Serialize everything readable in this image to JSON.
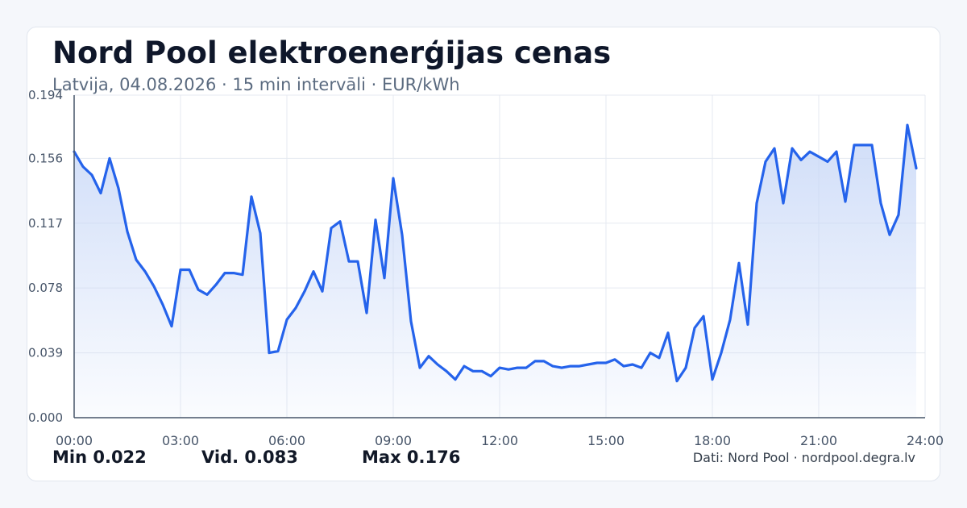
{
  "title": "Nord Pool elektroenerģijas cenas",
  "subtitle": "Latvija, 04.08.2026 · 15 min intervāli · EUR/kWh",
  "stats": {
    "min": "Min 0.022",
    "avg": "Vid. 0.083",
    "max": "Max 0.176"
  },
  "source": "Dati: Nord Pool · nordpool.degra.lv",
  "colors": {
    "line": "#2563eb",
    "area_top": "#c7d7f7",
    "grid": "#e5e9f0",
    "axis": "#475569"
  },
  "chart_data": {
    "type": "area",
    "title": "Nord Pool elektroenerģijas cenas",
    "xlabel": "",
    "ylabel": "",
    "xlim": [
      0,
      24
    ],
    "ylim": [
      0,
      0.194
    ],
    "x_ticks": [
      "00:00",
      "03:00",
      "06:00",
      "09:00",
      "12:00",
      "15:00",
      "18:00",
      "21:00",
      "24:00"
    ],
    "y_ticks": [
      "0.000",
      "0.039",
      "0.078",
      "0.117",
      "0.156",
      "0.194"
    ],
    "grid": true,
    "series": [
      {
        "points": [
          [
            0.0,
            0.16
          ],
          [
            0.25,
            0.151
          ],
          [
            0.5,
            0.146
          ],
          [
            0.75,
            0.135
          ],
          [
            1.0,
            0.156
          ],
          [
            1.25,
            0.138
          ],
          [
            1.5,
            0.112
          ],
          [
            1.75,
            0.095
          ],
          [
            2.0,
            0.088
          ],
          [
            2.25,
            0.079
          ],
          [
            2.5,
            0.068
          ],
          [
            2.75,
            0.055
          ],
          [
            3.0,
            0.089
          ],
          [
            3.25,
            0.089
          ],
          [
            3.5,
            0.077
          ],
          [
            3.75,
            0.074
          ],
          [
            4.0,
            0.08
          ],
          [
            4.25,
            0.087
          ],
          [
            4.5,
            0.087
          ],
          [
            4.75,
            0.086
          ],
          [
            5.0,
            0.133
          ],
          [
            5.25,
            0.111
          ],
          [
            5.5,
            0.039
          ],
          [
            5.75,
            0.04
          ],
          [
            6.0,
            0.059
          ],
          [
            6.25,
            0.066
          ],
          [
            6.5,
            0.076
          ],
          [
            6.75,
            0.088
          ],
          [
            7.0,
            0.076
          ],
          [
            7.25,
            0.114
          ],
          [
            7.5,
            0.118
          ],
          [
            7.75,
            0.094
          ],
          [
            8.0,
            0.094
          ],
          [
            8.25,
            0.063
          ],
          [
            8.5,
            0.119
          ],
          [
            8.75,
            0.084
          ],
          [
            9.0,
            0.144
          ],
          [
            9.25,
            0.11
          ],
          [
            9.5,
            0.058
          ],
          [
            9.75,
            0.03
          ],
          [
            10.0,
            0.037
          ],
          [
            10.25,
            0.032
          ],
          [
            10.5,
            0.028
          ],
          [
            10.75,
            0.023
          ],
          [
            11.0,
            0.031
          ],
          [
            11.25,
            0.028
          ],
          [
            11.5,
            0.028
          ],
          [
            11.75,
            0.025
          ],
          [
            12.0,
            0.03
          ],
          [
            12.25,
            0.029
          ],
          [
            12.5,
            0.03
          ],
          [
            12.75,
            0.03
          ],
          [
            13.0,
            0.034
          ],
          [
            13.25,
            0.034
          ],
          [
            13.5,
            0.031
          ],
          [
            13.75,
            0.03
          ],
          [
            14.0,
            0.031
          ],
          [
            14.25,
            0.031
          ],
          [
            14.5,
            0.032
          ],
          [
            14.75,
            0.033
          ],
          [
            15.0,
            0.033
          ],
          [
            15.25,
            0.035
          ],
          [
            15.5,
            0.031
          ],
          [
            15.75,
            0.032
          ],
          [
            16.0,
            0.03
          ],
          [
            16.25,
            0.039
          ],
          [
            16.5,
            0.036
          ],
          [
            16.75,
            0.051
          ],
          [
            17.0,
            0.022
          ],
          [
            17.25,
            0.03
          ],
          [
            17.5,
            0.054
          ],
          [
            17.75,
            0.061
          ],
          [
            18.0,
            0.023
          ],
          [
            18.25,
            0.039
          ],
          [
            18.5,
            0.059
          ],
          [
            18.75,
            0.093
          ],
          [
            19.0,
            0.056
          ],
          [
            19.25,
            0.129
          ],
          [
            19.5,
            0.154
          ],
          [
            19.75,
            0.162
          ],
          [
            20.0,
            0.129
          ],
          [
            20.25,
            0.162
          ],
          [
            20.5,
            0.155
          ],
          [
            20.75,
            0.16
          ],
          [
            21.0,
            0.157
          ],
          [
            21.25,
            0.154
          ],
          [
            21.5,
            0.16
          ],
          [
            21.75,
            0.13
          ],
          [
            22.0,
            0.164
          ],
          [
            22.25,
            0.164
          ],
          [
            22.5,
            0.164
          ],
          [
            22.75,
            0.129
          ],
          [
            23.0,
            0.11
          ],
          [
            23.25,
            0.122
          ],
          [
            23.5,
            0.176
          ],
          [
            23.75,
            0.15
          ]
        ]
      }
    ]
  }
}
